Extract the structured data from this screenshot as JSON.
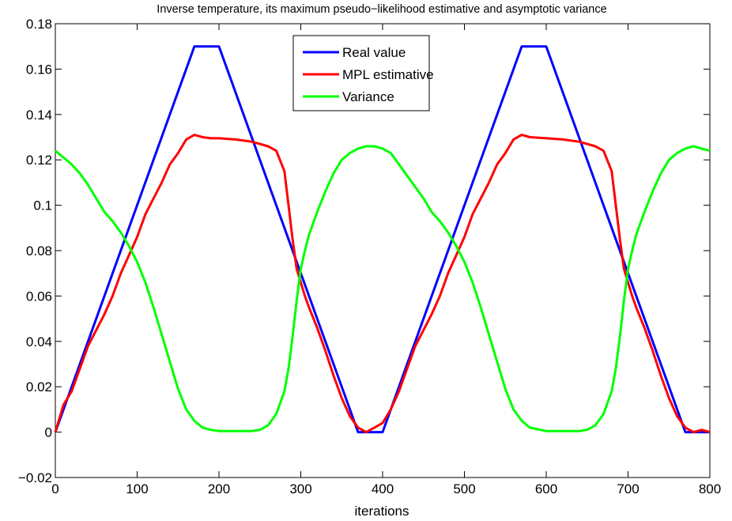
{
  "chart_data": {
    "type": "line",
    "title": "Inverse temperature, its maximum pseudo−likelihood estimative and asymptotic variance",
    "xlabel": "iterations",
    "ylabel": "",
    "xlim": [
      0,
      800
    ],
    "ylim": [
      -0.02,
      0.18
    ],
    "xticks": [
      0,
      100,
      200,
      300,
      400,
      500,
      600,
      700,
      800
    ],
    "xtick_labels": [
      "0",
      "100",
      "200",
      "300",
      "400",
      "500",
      "600",
      "700",
      "800"
    ],
    "yticks": [
      -0.02,
      0,
      0.02,
      0.04,
      0.06,
      0.08,
      0.1,
      0.12,
      0.14,
      0.16,
      0.18
    ],
    "ytick_labels": [
      "−0.02",
      "0",
      "0.02",
      "0.04",
      "0.06",
      "0.08",
      "0.1",
      "0.12",
      "0.14",
      "0.16",
      "0.18"
    ],
    "grid": false,
    "legend_position": "top-center",
    "series": [
      {
        "name": "Real value",
        "color": "#0000ff",
        "x": [
          0,
          170,
          200,
          370,
          400,
          570,
          600,
          770,
          800
        ],
        "y": [
          0.0,
          0.17,
          0.17,
          0.0,
          0.0,
          0.17,
          0.17,
          0.0,
          0.0
        ]
      },
      {
        "name": "MPL estimative",
        "color": "#ff0000",
        "x": [
          0,
          10,
          20,
          30,
          40,
          50,
          60,
          70,
          80,
          90,
          100,
          110,
          120,
          130,
          140,
          150,
          160,
          170,
          180,
          190,
          200,
          220,
          240,
          260,
          270,
          280,
          285,
          290,
          295,
          300,
          305,
          310,
          320,
          330,
          340,
          350,
          360,
          370,
          380,
          390,
          400,
          410,
          420,
          430,
          440,
          450,
          460,
          470,
          480,
          490,
          500,
          510,
          520,
          530,
          540,
          550,
          560,
          570,
          580,
          600,
          620,
          640,
          660,
          670,
          680,
          685,
          690,
          695,
          700,
          705,
          710,
          720,
          730,
          740,
          750,
          760,
          770,
          780,
          790,
          800
        ],
        "y": [
          0.0,
          0.012,
          0.018,
          0.028,
          0.038,
          0.045,
          0.052,
          0.06,
          0.07,
          0.078,
          0.086,
          0.096,
          0.103,
          0.11,
          0.118,
          0.123,
          0.129,
          0.131,
          0.13,
          0.1295,
          0.1295,
          0.129,
          0.128,
          0.126,
          0.124,
          0.115,
          0.1,
          0.085,
          0.072,
          0.066,
          0.06,
          0.055,
          0.046,
          0.036,
          0.025,
          0.015,
          0.007,
          0.002,
          0.0,
          0.002,
          0.004,
          0.01,
          0.018,
          0.028,
          0.038,
          0.045,
          0.052,
          0.06,
          0.07,
          0.078,
          0.086,
          0.096,
          0.103,
          0.11,
          0.118,
          0.123,
          0.129,
          0.131,
          0.13,
          0.1295,
          0.129,
          0.128,
          0.126,
          0.124,
          0.115,
          0.1,
          0.085,
          0.072,
          0.066,
          0.06,
          0.055,
          0.046,
          0.036,
          0.025,
          0.015,
          0.007,
          0.002,
          0.0,
          0.001,
          0.0
        ]
      },
      {
        "name": "Variance",
        "color": "#00ff00",
        "x": [
          0,
          10,
          20,
          30,
          40,
          50,
          60,
          70,
          80,
          90,
          100,
          110,
          120,
          130,
          140,
          150,
          160,
          170,
          180,
          190,
          200,
          220,
          240,
          250,
          260,
          270,
          280,
          285,
          290,
          295,
          300,
          305,
          310,
          320,
          330,
          340,
          350,
          360,
          370,
          380,
          390,
          400,
          410,
          420,
          430,
          440,
          450,
          460,
          470,
          480,
          490,
          500,
          510,
          520,
          530,
          540,
          550,
          560,
          570,
          580,
          600,
          620,
          640,
          650,
          660,
          670,
          680,
          685,
          690,
          695,
          700,
          705,
          710,
          720,
          730,
          740,
          750,
          760,
          770,
          780,
          790,
          800
        ],
        "y": [
          0.124,
          0.121,
          0.118,
          0.114,
          0.109,
          0.103,
          0.097,
          0.093,
          0.088,
          0.082,
          0.075,
          0.066,
          0.055,
          0.043,
          0.031,
          0.019,
          0.01,
          0.005,
          0.002,
          0.001,
          0.0005,
          0.0005,
          0.0005,
          0.001,
          0.003,
          0.008,
          0.018,
          0.028,
          0.042,
          0.058,
          0.072,
          0.08,
          0.087,
          0.097,
          0.106,
          0.114,
          0.12,
          0.123,
          0.125,
          0.126,
          0.126,
          0.125,
          0.123,
          0.118,
          0.113,
          0.108,
          0.103,
          0.097,
          0.093,
          0.088,
          0.082,
          0.075,
          0.066,
          0.055,
          0.043,
          0.031,
          0.019,
          0.01,
          0.005,
          0.002,
          0.0005,
          0.0005,
          0.0005,
          0.001,
          0.003,
          0.008,
          0.018,
          0.028,
          0.042,
          0.058,
          0.072,
          0.08,
          0.087,
          0.097,
          0.106,
          0.114,
          0.12,
          0.123,
          0.125,
          0.126,
          0.125,
          0.124
        ]
      }
    ]
  }
}
